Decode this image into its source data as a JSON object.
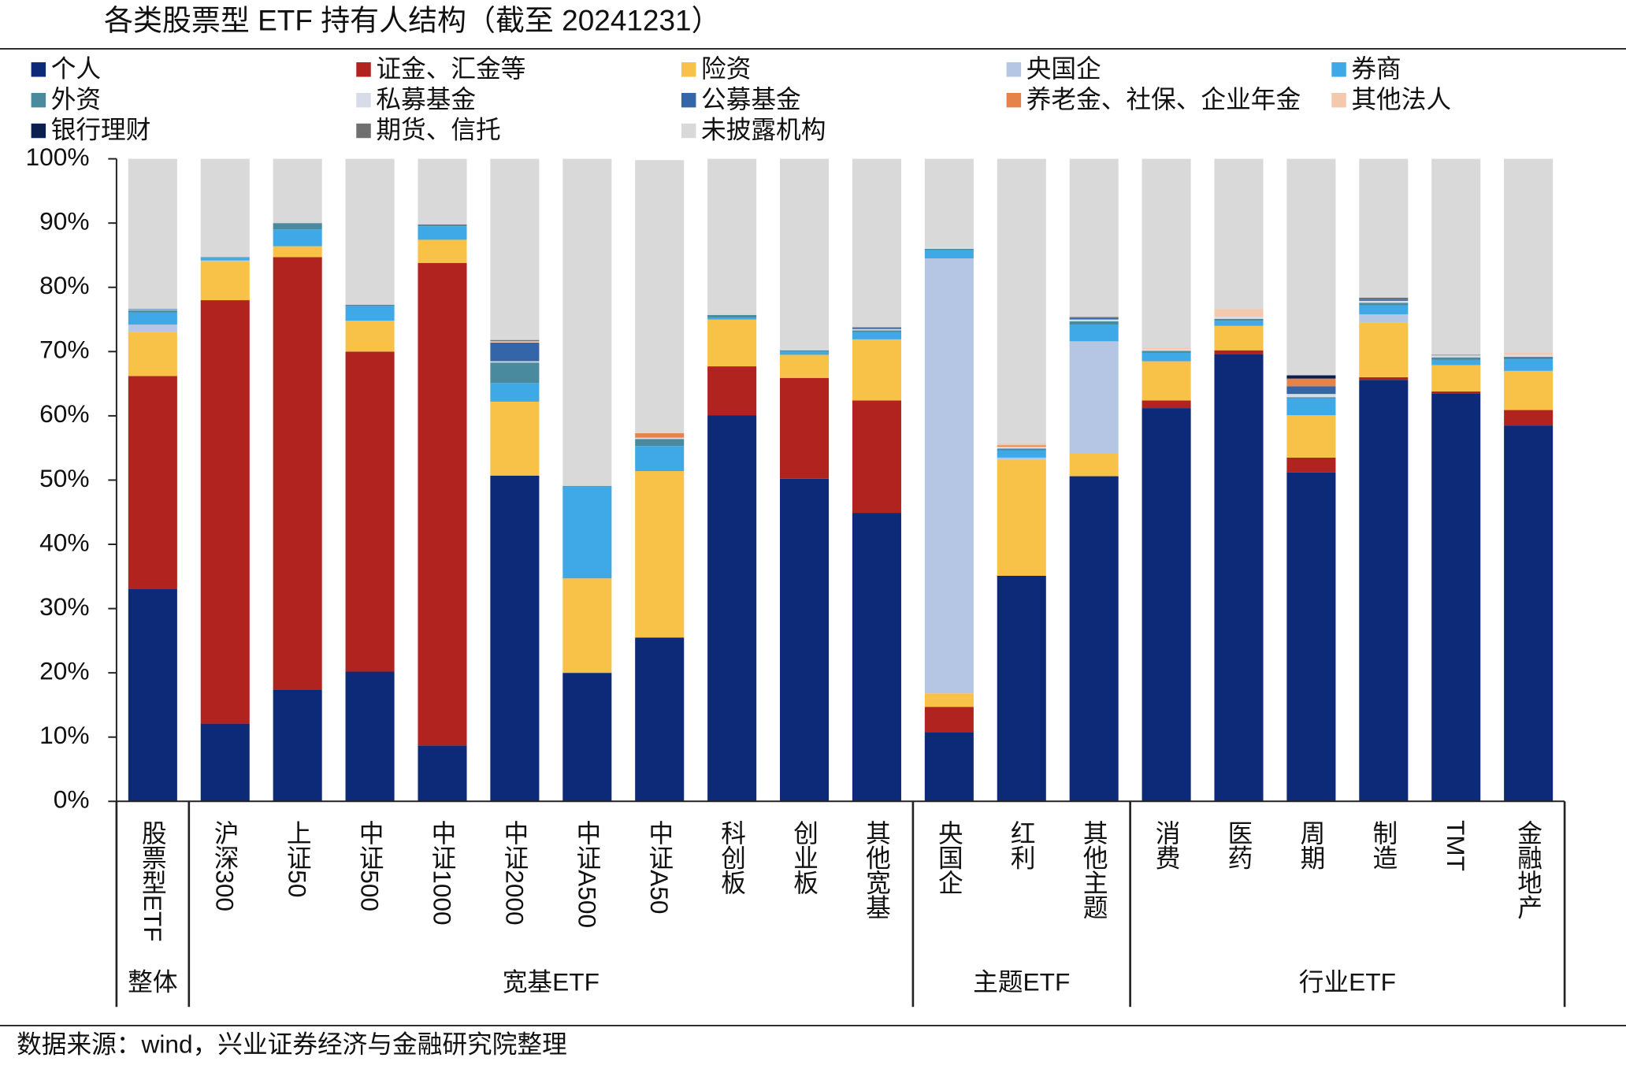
{
  "chart_data": {
    "type": "stacked_bar",
    "title": "各类股票型 ETF 持有人结构（截至 20241231）",
    "source": "数据来源：wind，兴业证券经济与金融研究院整理",
    "categories": [
      "股票型ETF",
      "沪深300",
      "上证50",
      "中证500",
      "中证1000",
      "中证2000",
      "中证A500",
      "中证A50",
      "科创板",
      "创业板",
      "其他宽基",
      "央国企",
      "红利",
      "其他主题",
      "消费",
      "医药",
      "周期",
      "制造",
      "TMT",
      "金融地产"
    ],
    "groups": [
      {
        "label": "整体",
        "count": 1
      },
      {
        "label": "宽基ETF",
        "count": 10
      },
      {
        "label": "主题ETF",
        "count": 3
      },
      {
        "label": "行业ETF",
        "count": 6
      }
    ],
    "ylim": [
      0,
      100
    ],
    "yticks": [
      {
        "value": 0,
        "label": "0%"
      },
      {
        "value": 10,
        "label": "10%"
      },
      {
        "value": 20,
        "label": "20%"
      },
      {
        "value": 30,
        "label": "30%"
      },
      {
        "value": 40,
        "label": "40%"
      },
      {
        "value": 50,
        "label": "50%"
      },
      {
        "value": 60,
        "label": "60%"
      },
      {
        "value": 70,
        "label": "70%"
      },
      {
        "value": 80,
        "label": "80%"
      },
      {
        "value": 90,
        "label": "90%"
      },
      {
        "value": 100,
        "label": "100%"
      }
    ],
    "series": [
      {
        "name": "个人",
        "color": "#0c2a78",
        "values": [
          33.1,
          12.1,
          17.4,
          20.2,
          8.7,
          50.7,
          20.0,
          25.5,
          60.1,
          50.2,
          44.9,
          10.8,
          35.1,
          50.6,
          61.2,
          69.6,
          51.2,
          65.6,
          63.5,
          58.5
        ]
      },
      {
        "name": "证金、汇金等",
        "color": "#b0231e",
        "values": [
          33.1,
          65.9,
          67.3,
          49.8,
          75.1,
          0,
          0,
          0,
          7.6,
          15.7,
          17.5,
          3.9,
          0,
          0,
          1.2,
          0.6,
          2.3,
          0.4,
          0.3,
          2.4
        ]
      },
      {
        "name": "险资",
        "color": "#f8c147",
        "values": [
          6.8,
          6.0,
          1.7,
          4.8,
          3.6,
          11.5,
          14.7,
          25.9,
          7.3,
          3.6,
          9.5,
          2.1,
          18.1,
          3.5,
          6.1,
          3.8,
          6.6,
          8.5,
          4.1,
          6.1
        ]
      },
      {
        "name": "央国企",
        "color": "#b4c6e4",
        "values": [
          1.2,
          0.2,
          0,
          0,
          0,
          0,
          0,
          0,
          0,
          0,
          0,
          67.7,
          0.3,
          17.5,
          0,
          0,
          0,
          1.3,
          0,
          0
        ]
      },
      {
        "name": "券商",
        "color": "#3ea9e6",
        "values": [
          1.9,
          0.4,
          2.6,
          2.3,
          2.1,
          2.9,
          14.3,
          3.9,
          0.3,
          0.5,
          1.1,
          1.3,
          1.1,
          2.6,
          1.3,
          0.8,
          2.6,
          1.4,
          0.8,
          1.8
        ]
      },
      {
        "name": "外资",
        "color": "#4a8a9e",
        "values": [
          0.3,
          0.1,
          1.0,
          0.2,
          0.3,
          3.2,
          0.1,
          1.1,
          0.4,
          0.2,
          0.3,
          0.2,
          0.3,
          0.5,
          0.3,
          0.3,
          0.2,
          0.4,
          0.4,
          0.4
        ]
      },
      {
        "name": "私募基金",
        "color": "#d8dce8",
        "values": [
          0.1,
          0,
          0,
          0,
          0,
          0.2,
          0,
          0.2,
          0,
          0.2,
          0.2,
          0.2,
          0.3,
          0.3,
          0.3,
          0.3,
          0.5,
          0.3,
          0.3,
          0.3
        ]
      },
      {
        "name": "公募基金",
        "color": "#3465a8",
        "values": [
          0.1,
          0,
          0,
          0,
          0,
          2.9,
          0,
          0,
          0,
          0,
          0.2,
          0,
          0,
          0.2,
          0,
          0,
          1.2,
          0.2,
          0,
          0
        ]
      },
      {
        "name": "养老金、社保、企业年金",
        "color": "#e6834a",
        "values": [
          0,
          0,
          0,
          0,
          0,
          0,
          0,
          0.7,
          0,
          0,
          0,
          0,
          0.2,
          0,
          0,
          0,
          1.2,
          0,
          0,
          0
        ]
      },
      {
        "name": "其他法人",
        "color": "#f3c8ac",
        "values": [
          0,
          0,
          0,
          0,
          0,
          0.2,
          0,
          0,
          0,
          0,
          0,
          0,
          0.3,
          0,
          0.2,
          1.2,
          0,
          0,
          0,
          0.3
        ]
      },
      {
        "name": "银行理财",
        "color": "#0a1f50",
        "values": [
          0,
          0,
          0,
          0,
          0,
          0,
          0,
          0,
          0,
          0,
          0,
          0,
          0,
          0,
          0,
          0,
          0.5,
          0,
          0,
          0
        ]
      },
      {
        "name": "期货、信托",
        "color": "#707070",
        "values": [
          0,
          0,
          0,
          0,
          0,
          0.2,
          0,
          0,
          0,
          0,
          0.1,
          0,
          0,
          0.2,
          0,
          0,
          0,
          0.3,
          0.1,
          0
        ]
      },
      {
        "name": "未披露机构",
        "color": "#d9d9d9",
        "values": [
          23.4,
          15.3,
          10.0,
          22.7,
          10.2,
          28.2,
          50.9,
          42.5,
          24.3,
          29.6,
          26.2,
          13.8,
          44.3,
          24.6,
          29.4,
          23.4,
          33.7,
          21.6,
          30.5,
          30.2
        ]
      }
    ]
  }
}
